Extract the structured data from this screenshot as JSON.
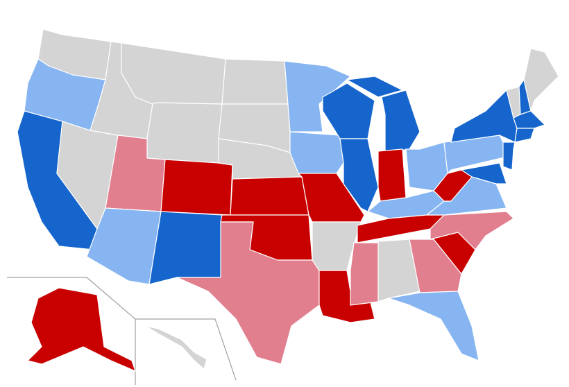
{
  "map": {
    "regions": [
      {
        "color": "#d4d4d4"
      },
      {
        "color": "#86b5f2"
      },
      {
        "color": "#1565cc"
      },
      {
        "color": "#d4d4d4"
      },
      {
        "color": "#d4d4d4"
      },
      {
        "color": "#d4d4d4"
      },
      {
        "color": "#d4d4d4"
      },
      {
        "color": "#e17f8f"
      },
      {
        "color": "#86b5f2"
      },
      {
        "color": "#c90000"
      },
      {
        "color": "#1565cc"
      },
      {
        "color": "#d4d4d4"
      },
      {
        "color": "#d4d4d4"
      },
      {
        "color": "#d4d4d4"
      },
      {
        "color": "#c90000"
      },
      {
        "color": "#c90000"
      },
      {
        "color": "#e17f8f"
      },
      {
        "color": "#86b5f2"
      },
      {
        "color": "#86b5f2"
      },
      {
        "color": "#c90000"
      },
      {
        "color": "#d4d4d4"
      },
      {
        "color": "#c90000"
      },
      {
        "color": "#1565cc"
      },
      {
        "color": "#1565cc"
      },
      {
        "color": "#1565cc"
      },
      {
        "color": "#1565cc"
      },
      {
        "color": "#c90000"
      },
      {
        "color": "#86b5f2"
      },
      {
        "color": "#86b5f2"
      },
      {
        "color": "#c90000"
      },
      {
        "color": "#e17f8f"
      },
      {
        "color": "#d4d4d4"
      },
      {
        "color": "#e17f8f"
      },
      {
        "color": "#86b5f2"
      },
      {
        "color": "#c90000"
      },
      {
        "color": "#e17f8f"
      },
      {
        "color": "#86b5f2"
      },
      {
        "color": "#c90000"
      },
      {
        "color": "#86b5f2"
      },
      {
        "color": "#1565cc"
      },
      {
        "color": "#d4d4d4"
      },
      {
        "color": "#1565cc"
      },
      {
        "color": "#d4d4d4"
      },
      {
        "color": "#1565cc"
      },
      {
        "color": "#1565cc"
      },
      {
        "color": "#1565cc"
      },
      {
        "color": "#1565cc"
      },
      {
        "color": "#c90000"
      },
      {
        "color": "#d4d4d4"
      }
    ]
  }
}
